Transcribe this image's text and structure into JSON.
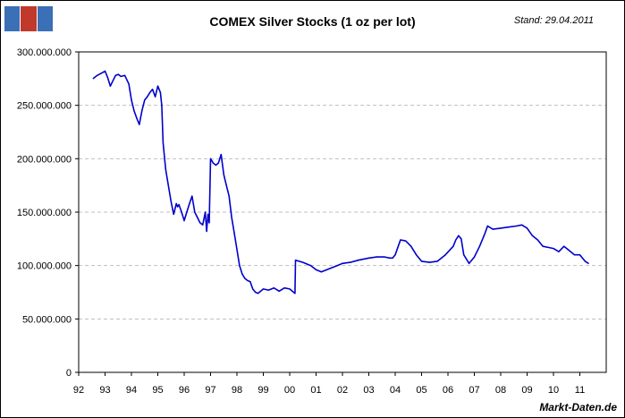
{
  "header": {
    "title": "COMEX Silver Stocks (1 oz per lot)",
    "stamp": "Stand: 29.04.2011"
  },
  "footer": {
    "credit": "Markt-Daten.de"
  },
  "logo": {
    "icon": "chart-logo-icon",
    "colors": [
      "#3b6fb6",
      "#c0392b",
      "#3b6fb6"
    ]
  },
  "colors": {
    "series": "#0000cc",
    "grid": "#bfbfbf",
    "axis": "#000000"
  },
  "chart_data": {
    "type": "line",
    "title": "COMEX Silver Stocks (1 oz per lot)",
    "xlabel": "",
    "ylabel": "",
    "ylim": [
      0,
      300000000
    ],
    "xlim": [
      1992,
      2012
    ],
    "yticks": [
      0,
      50000000,
      100000000,
      150000000,
      200000000,
      250000000,
      300000000
    ],
    "ytick_labels": [
      "0",
      "50.000.000",
      "100.000.000",
      "150.000.000",
      "200.000.000",
      "250.000.000",
      "300.000.000"
    ],
    "xticks": [
      1992,
      1993,
      1994,
      1995,
      1996,
      1997,
      1998,
      1999,
      2000,
      2001,
      2002,
      2003,
      2004,
      2005,
      2006,
      2007,
      2008,
      2009,
      2010,
      2011
    ],
    "xtick_labels": [
      "92",
      "93",
      "94",
      "95",
      "96",
      "97",
      "98",
      "99",
      "00",
      "01",
      "02",
      "03",
      "04",
      "05",
      "06",
      "07",
      "08",
      "09",
      "10",
      "11"
    ],
    "grid": true,
    "series": [
      {
        "name": "COMEX Silver Stocks",
        "x": [
          1992.55,
          1992.7,
          1992.85,
          1993.0,
          1993.1,
          1993.2,
          1993.3,
          1993.4,
          1993.5,
          1993.6,
          1993.75,
          1993.9,
          1994.0,
          1994.1,
          1994.2,
          1994.3,
          1994.4,
          1994.5,
          1994.6,
          1994.7,
          1994.8,
          1994.9,
          1995.0,
          1995.1,
          1995.15,
          1995.2,
          1995.3,
          1995.4,
          1995.5,
          1995.6,
          1995.7,
          1995.75,
          1995.8,
          1995.9,
          1996.0,
          1996.1,
          1996.2,
          1996.3,
          1996.4,
          1996.5,
          1996.6,
          1996.7,
          1996.8,
          1996.85,
          1996.9,
          1996.95,
          1997.0,
          1997.05,
          1997.1,
          1997.2,
          1997.3,
          1997.4,
          1997.5,
          1997.6,
          1997.7,
          1997.8,
          1997.9,
          1998.0,
          1998.1,
          1998.2,
          1998.3,
          1998.4,
          1998.5,
          1998.6,
          1998.7,
          1998.8,
          1998.9,
          1999.0,
          1999.2,
          1999.4,
          1999.6,
          1999.8,
          2000.0,
          2000.2,
          2000.22,
          2000.5,
          2000.8,
          2001.0,
          2001.2,
          2001.5,
          2001.8,
          2002.0,
          2002.3,
          2002.6,
          2003.0,
          2003.3,
          2003.6,
          2003.8,
          2003.9,
          2004.0,
          2004.2,
          2004.4,
          2004.6,
          2004.8,
          2005.0,
          2005.3,
          2005.6,
          2005.9,
          2006.2,
          2006.3,
          2006.4,
          2006.5,
          2006.6,
          2006.8,
          2007.0,
          2007.2,
          2007.4,
          2007.5,
          2007.7,
          2008.0,
          2008.3,
          2008.6,
          2008.8,
          2009.0,
          2009.2,
          2009.4,
          2009.6,
          2009.8,
          2010.0,
          2010.2,
          2010.4,
          2010.5,
          2010.6,
          2010.8,
          2011.0,
          2011.2,
          2011.33
        ],
        "values": [
          275000000,
          278000000,
          280000000,
          282000000,
          276000000,
          268000000,
          273000000,
          278000000,
          279000000,
          277000000,
          278000000,
          270000000,
          255000000,
          245000000,
          238000000,
          232000000,
          245000000,
          255000000,
          258000000,
          262000000,
          265000000,
          258000000,
          268000000,
          262000000,
          250000000,
          215000000,
          190000000,
          175000000,
          160000000,
          148000000,
          158000000,
          155000000,
          157000000,
          150000000,
          142000000,
          150000000,
          158000000,
          165000000,
          150000000,
          145000000,
          140000000,
          138000000,
          150000000,
          132000000,
          148000000,
          140000000,
          200000000,
          198000000,
          196000000,
          194000000,
          196000000,
          204000000,
          185000000,
          175000000,
          165000000,
          145000000,
          130000000,
          115000000,
          100000000,
          92000000,
          88000000,
          86000000,
          85000000,
          78000000,
          75000000,
          74000000,
          76000000,
          78000000,
          77000000,
          79000000,
          76000000,
          79000000,
          78000000,
          74000000,
          105000000,
          103000000,
          100000000,
          96000000,
          94000000,
          97000000,
          100000000,
          102000000,
          103000000,
          105000000,
          107000000,
          108000000,
          108000000,
          107000000,
          107000000,
          110000000,
          124000000,
          123000000,
          118000000,
          110000000,
          104000000,
          103000000,
          104000000,
          110000000,
          118000000,
          124000000,
          128000000,
          125000000,
          110000000,
          102000000,
          108000000,
          118000000,
          130000000,
          137000000,
          134000000,
          135000000,
          136000000,
          137000000,
          138000000,
          135000000,
          128000000,
          124000000,
          118000000,
          117000000,
          116000000,
          113000000,
          118000000,
          116000000,
          114000000,
          110000000,
          110000000,
          104000000,
          102000000
        ]
      }
    ]
  }
}
